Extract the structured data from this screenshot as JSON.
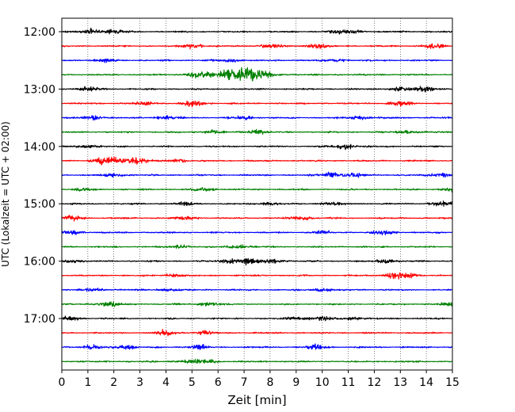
{
  "chart_data": {
    "type": "line",
    "title": "",
    "xlabel": "Zeit  [min]",
    "ylabel": "UTC (Lokalzeit = UTC + 02:00)",
    "xlim": [
      0,
      15
    ],
    "x_ticks": [
      "0",
      "1",
      "2",
      "3",
      "4",
      "5",
      "6",
      "7",
      "8",
      "9",
      "10",
      "11",
      "12",
      "13",
      "14",
      "15"
    ],
    "y_ticks": [
      "12:00",
      "13:00",
      "14:00",
      "15:00",
      "16:00",
      "17:00"
    ],
    "grid": "vertical dotted lines at each minute",
    "trace_minutes": 15,
    "traces": [
      {
        "start": "12:00",
        "color": "#000000",
        "events": [
          [
            1.2,
            0.6
          ],
          [
            2.1,
            0.55
          ],
          [
            10.5,
            0.35
          ],
          [
            11.2,
            0.35
          ]
        ]
      },
      {
        "start": "12:15",
        "color": "#ff0000",
        "events": [
          [
            5.0,
            0.6
          ],
          [
            8.0,
            0.4
          ],
          [
            9.8,
            0.5
          ],
          [
            14.3,
            0.55
          ]
        ]
      },
      {
        "start": "12:30",
        "color": "#0000ff",
        "events": [
          [
            1.6,
            0.4
          ],
          [
            6.5,
            0.4
          ],
          [
            10.6,
            0.3
          ]
        ]
      },
      {
        "start": "12:45",
        "color": "#008000",
        "events": [
          [
            5.2,
            0.6
          ],
          [
            6.6,
            1.1
          ],
          [
            7.3,
            0.9
          ]
        ]
      },
      {
        "start": "13:00",
        "color": "#000000",
        "events": [
          [
            1.0,
            0.5
          ],
          [
            13.0,
            0.45
          ],
          [
            14.0,
            0.6
          ]
        ]
      },
      {
        "start": "13:15",
        "color": "#ff0000",
        "events": [
          [
            3.2,
            0.45
          ],
          [
            5.0,
            0.7
          ],
          [
            13.0,
            0.5
          ]
        ]
      },
      {
        "start": "13:30",
        "color": "#0000ff",
        "events": [
          [
            1.2,
            0.45
          ],
          [
            4.0,
            0.45
          ],
          [
            7.0,
            0.4
          ],
          [
            11.5,
            0.4
          ]
        ]
      },
      {
        "start": "13:45",
        "color": "#008000",
        "events": [
          [
            5.8,
            0.35
          ],
          [
            7.5,
            0.4
          ],
          [
            13.2,
            0.3
          ]
        ]
      },
      {
        "start": "14:00",
        "color": "#000000",
        "events": [
          [
            1.0,
            0.35
          ],
          [
            10.9,
            0.5
          ]
        ]
      },
      {
        "start": "14:15",
        "color": "#ff0000",
        "events": [
          [
            1.5,
            0.55
          ],
          [
            2.0,
            0.7
          ],
          [
            2.9,
            0.75
          ],
          [
            4.5,
            0.3
          ]
        ]
      },
      {
        "start": "14:30",
        "color": "#0000ff",
        "events": [
          [
            2.0,
            0.35
          ],
          [
            10.3,
            0.55
          ],
          [
            11.2,
            0.45
          ],
          [
            14.5,
            0.45
          ]
        ]
      },
      {
        "start": "14:45",
        "color": "#008000",
        "events": [
          [
            0.8,
            0.3
          ],
          [
            5.5,
            0.35
          ],
          [
            15.0,
            0.5
          ]
        ]
      },
      {
        "start": "15:00",
        "color": "#000000",
        "events": [
          [
            4.7,
            0.35
          ],
          [
            8.0,
            0.35
          ],
          [
            10.4,
            0.4
          ],
          [
            14.6,
            0.6
          ]
        ]
      },
      {
        "start": "15:15",
        "color": "#ff0000",
        "events": [
          [
            0.4,
            0.45
          ],
          [
            4.8,
            0.35
          ],
          [
            9.2,
            0.4
          ]
        ]
      },
      {
        "start": "15:30",
        "color": "#0000ff",
        "events": [
          [
            0.4,
            0.35
          ],
          [
            10.0,
            0.35
          ],
          [
            12.4,
            0.45
          ]
        ]
      },
      {
        "start": "15:45",
        "color": "#008000",
        "events": [
          [
            4.6,
            0.35
          ],
          [
            6.8,
            0.4
          ]
        ]
      },
      {
        "start": "16:00",
        "color": "#000000",
        "events": [
          [
            0.4,
            0.3
          ],
          [
            6.5,
            0.45
          ],
          [
            7.2,
            0.7
          ],
          [
            8.2,
            0.45
          ],
          [
            12.4,
            0.4
          ]
        ]
      },
      {
        "start": "16:15",
        "color": "#ff0000",
        "events": [
          [
            4.3,
            0.3
          ],
          [
            12.8,
            0.55
          ],
          [
            13.3,
            0.5
          ]
        ]
      },
      {
        "start": "16:30",
        "color": "#0000ff",
        "events": [
          [
            1.2,
            0.35
          ],
          [
            4.1,
            0.35
          ],
          [
            10.0,
            0.35
          ]
        ]
      },
      {
        "start": "16:45",
        "color": "#008000",
        "events": [
          [
            1.8,
            0.6
          ],
          [
            5.6,
            0.45
          ],
          [
            15.0,
            0.4
          ]
        ]
      },
      {
        "start": "17:00",
        "color": "#000000",
        "events": [
          [
            0.3,
            0.45
          ],
          [
            9.0,
            0.35
          ],
          [
            10.0,
            0.4
          ],
          [
            11.2,
            0.35
          ]
        ]
      },
      {
        "start": "17:15",
        "color": "#ff0000",
        "events": [
          [
            4.0,
            0.5
          ],
          [
            5.5,
            0.4
          ]
        ]
      },
      {
        "start": "17:30",
        "color": "#0000ff",
        "events": [
          [
            1.2,
            0.45
          ],
          [
            2.5,
            0.45
          ],
          [
            5.2,
            0.55
          ],
          [
            9.8,
            0.5
          ]
        ]
      },
      {
        "start": "17:45",
        "color": "#008000",
        "events": [
          [
            4.8,
            0.35
          ],
          [
            5.6,
            0.35
          ]
        ]
      }
    ]
  }
}
